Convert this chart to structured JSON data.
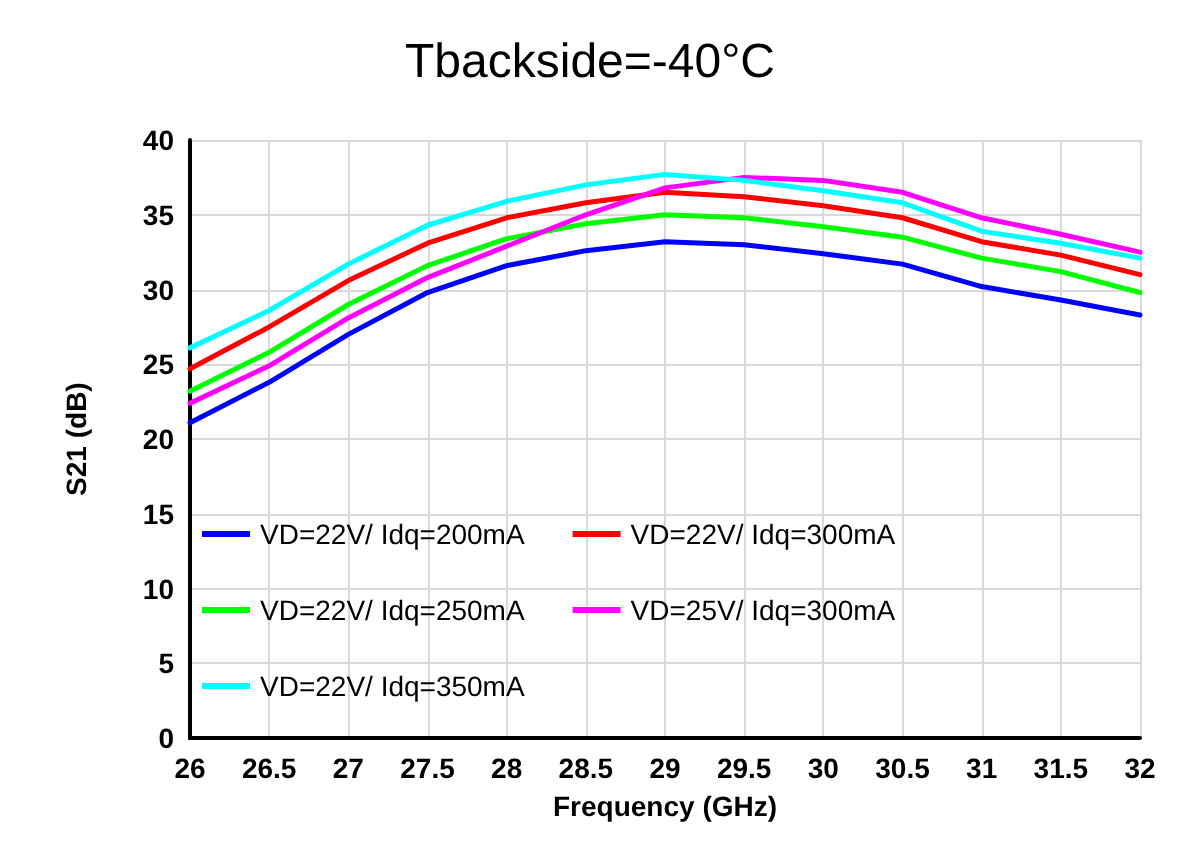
{
  "chart_data": {
    "type": "line",
    "title": "Tbackside=-40°C",
    "xlabel": "Frequency (GHz)",
    "ylabel": "S21 (dB)",
    "x": [
      26,
      26.5,
      27,
      27.5,
      28,
      28.5,
      29,
      29.5,
      30,
      30.5,
      31,
      31.5,
      32
    ],
    "series": [
      {
        "name": "VD=22V/ Idq=200mA",
        "color": "#0000ff",
        "values": [
          21.1,
          23.8,
          27,
          29.8,
          31.6,
          32.6,
          33.2,
          33,
          32.4,
          31.7,
          30.2,
          29.3,
          28.3
        ]
      },
      {
        "name": "VD=22V/ Idq=300mA",
        "color": "#ff0000",
        "values": [
          24.7,
          27.5,
          30.6,
          33.1,
          34.8,
          35.8,
          36.5,
          36.2,
          35.6,
          34.8,
          33.2,
          32.3,
          31
        ]
      },
      {
        "name": "VD=22V/ Idq=250mA",
        "color": "#00ff00",
        "values": [
          23.2,
          25.8,
          29,
          31.6,
          33.4,
          34.4,
          35,
          34.8,
          34.2,
          33.5,
          32.1,
          31.2,
          29.8
        ]
      },
      {
        "name": "VD=25V/ Idq=300mA",
        "color": "#ff00ff",
        "values": [
          22.4,
          24.9,
          28.1,
          30.8,
          32.9,
          35,
          36.8,
          37.5,
          37.3,
          36.5,
          34.8,
          33.7,
          32.5
        ]
      },
      {
        "name": "VD=22V/ Idq=350mA",
        "color": "#00ffff",
        "values": [
          26.1,
          28.6,
          31.7,
          34.3,
          35.9,
          37,
          37.7,
          37.3,
          36.6,
          35.8,
          33.9,
          33.1,
          32.1
        ]
      }
    ],
    "xlim": [
      26,
      32
    ],
    "xticks": [
      26,
      26.5,
      27,
      27.5,
      28,
      28.5,
      29,
      29.5,
      30,
      30.5,
      31,
      31.5,
      32
    ],
    "ylim": [
      0,
      40
    ],
    "yticks": [
      0,
      5,
      10,
      15,
      20,
      25,
      30,
      35,
      40
    ],
    "grid": true,
    "legend": "bottom left",
    "marker": "none",
    "line_style": "solid"
  }
}
